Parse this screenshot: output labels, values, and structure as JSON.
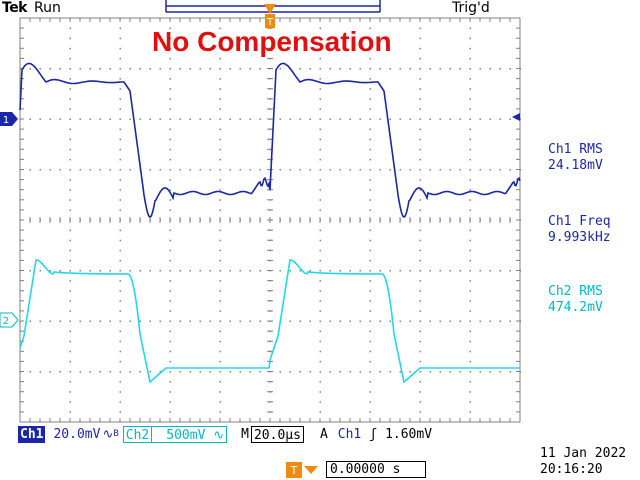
{
  "header": {
    "brand": "Tek",
    "state": "Run",
    "trigger_state": "Trig'd"
  },
  "annotation": "No Compensation",
  "measurements": [
    {
      "label": "Ch1 RMS",
      "value": "24.18mV",
      "color": "#1a27a8"
    },
    {
      "label": "Ch1 Freq",
      "value": "9.993kHz",
      "color": "#1a27a8"
    },
    {
      "label": "Ch2 RMS",
      "value": "474.2mV",
      "color": "#00b8c8"
    }
  ],
  "channel_markers": {
    "ch1": "1",
    "ch2": "2"
  },
  "status_bar": {
    "ch1_label": "Ch1",
    "ch1_scale": "20.0mV",
    "ch1_coupling": "∿",
    "ch1_bw": "B",
    "ch2_label": "Ch2",
    "ch2_scale": "500mV",
    "ch2_coupling": "∿",
    "timebase_prefix": "M",
    "timebase": "20.0µs",
    "trigger_prefix": "A",
    "trigger_source": "Ch1",
    "trigger_slope": "ʃ",
    "trigger_level": "1.60mV"
  },
  "horizontal_position": "0.00000 s",
  "date": "11 Jan  2022",
  "time": "20:16:20",
  "colors": {
    "ch1": "#1a27a8",
    "ch2": "#00b8c8",
    "trigger": "#f08a10",
    "annotation": "#e01010"
  },
  "icons": [
    "trigger-position-icon",
    "trigger-level-icon",
    "ch1-ground-marker-icon",
    "ch2-ground-marker-icon",
    "trigger-arrow-icon"
  ]
}
